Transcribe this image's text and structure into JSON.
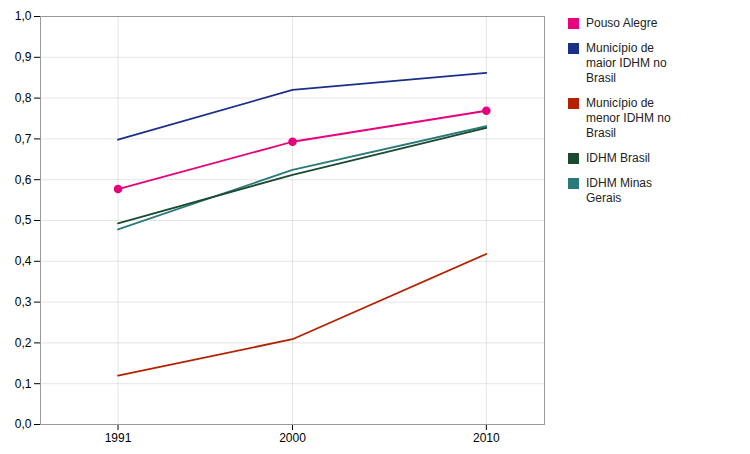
{
  "chart_data": {
    "type": "line",
    "x": [
      1991,
      2000,
      2010
    ],
    "series": [
      {
        "name": "Pouso Alegre",
        "color": "#E8007D",
        "values": [
          0.577,
          0.693,
          0.769
        ],
        "marker": "circle"
      },
      {
        "name": "Município de\nmaior IDHM no\nBrasil",
        "color": "#1A2F8A",
        "values": [
          0.698,
          0.82,
          0.862
        ]
      },
      {
        "name": "Município de\nmenor IDHM no\nBrasil",
        "color": "#B52000",
        "values": [
          0.12,
          0.209,
          0.418
        ]
      },
      {
        "name": "IDHM Brasil",
        "color": "#1A4A30",
        "values": [
          0.493,
          0.612,
          0.727
        ]
      },
      {
        "name": "IDHM Minas\nGerais",
        "color": "#2A7A7A",
        "values": [
          0.478,
          0.624,
          0.731
        ]
      }
    ],
    "xlim": [
      1987,
      2013
    ],
    "xticks": [
      1991,
      2000,
      2010
    ],
    "ylim": [
      0.0,
      1.0
    ],
    "yticks": [
      {
        "value": 0.0,
        "label": "0,0"
      },
      {
        "value": 0.1,
        "label": "0,1"
      },
      {
        "value": 0.2,
        "label": "0,2"
      },
      {
        "value": 0.3,
        "label": "0,3"
      },
      {
        "value": 0.4,
        "label": "0,4"
      },
      {
        "value": 0.5,
        "label": "0,5"
      },
      {
        "value": 0.6,
        "label": "0,6"
      },
      {
        "value": 0.7,
        "label": "0,7"
      },
      {
        "value": 0.8,
        "label": "0,8"
      },
      {
        "value": 0.9,
        "label": "0,9"
      },
      {
        "value": 1.0,
        "label": "1,0"
      }
    ],
    "grid": true,
    "legend": "right"
  }
}
